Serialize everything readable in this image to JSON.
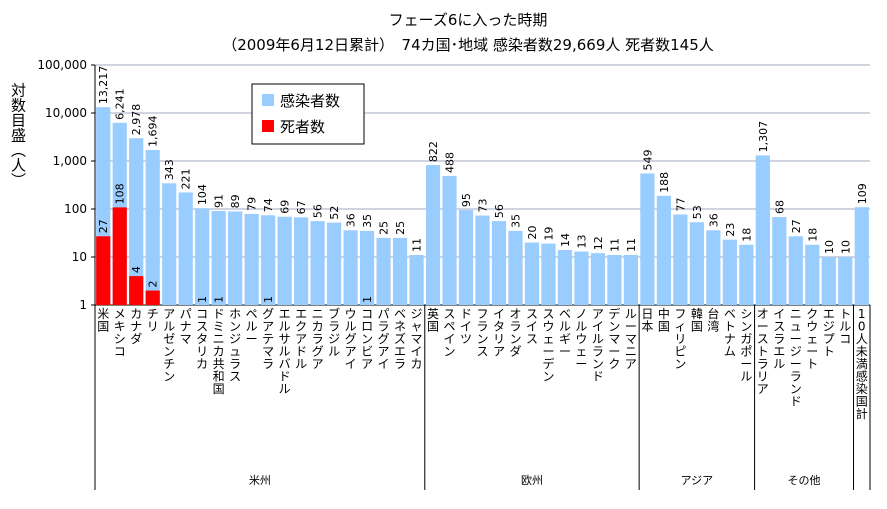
{
  "chart_data": {
    "type": "bar",
    "title": "フェーズ6に入った時期",
    "subtitle": "（2009年6月12日累計）　74カ国･地域 感染者数29,669人 死者数145人",
    "ylabel": "対数目盛（人）",
    "yscale": "log",
    "ylim": [
      1,
      100000
    ],
    "yticks": [
      "1",
      "10",
      "100",
      "1,000",
      "10,000",
      "100,000"
    ],
    "grid": true,
    "legend_position": "top-center",
    "colors": {
      "infected": "#99ccff",
      "deaths": "#ff0000"
    },
    "series": [
      {
        "name": "感染者数",
        "values": [
          13217,
          6241,
          2978,
          1694,
          343,
          221,
          104,
          91,
          89,
          79,
          74,
          69,
          67,
          56,
          52,
          36,
          35,
          25,
          25,
          11,
          822,
          488,
          95,
          73,
          56,
          35,
          20,
          19,
          14,
          13,
          12,
          11,
          11,
          549,
          188,
          77,
          53,
          36,
          23,
          18,
          1307,
          68,
          27,
          18,
          10,
          10,
          109
        ],
        "labels": [
          "13,217",
          "6,241",
          "2,978",
          "1,694",
          "343",
          "221",
          "104",
          "91",
          "89",
          "79",
          "74",
          "69",
          "67",
          "56",
          "52",
          "36",
          "35",
          "25",
          "25",
          "11",
          "822",
          "488",
          "95",
          "73",
          "56",
          "35",
          "20",
          "19",
          "14",
          "13",
          "12",
          "11",
          "11",
          "549",
          "188",
          "77",
          "53",
          "36",
          "23",
          "18",
          "1,307",
          "68",
          "27",
          "18",
          "10",
          "10",
          "109"
        ]
      },
      {
        "name": "死者数",
        "values": [
          27,
          108,
          4,
          2,
          0,
          0,
          1,
          1,
          0,
          0,
          1,
          0,
          0,
          0,
          0,
          0,
          1,
          0,
          0,
          0,
          0,
          0,
          0,
          0,
          0,
          0,
          0,
          0,
          0,
          0,
          0,
          0,
          0,
          0,
          0,
          0,
          0,
          0,
          0,
          0,
          0,
          0,
          0,
          0,
          0,
          0,
          0
        ],
        "labels": [
          "27",
          "108",
          "4",
          "2",
          "",
          "",
          "1",
          "1",
          "",
          "",
          "1",
          "",
          "",
          "",
          "",
          "",
          "1",
          "",
          "",
          "",
          "",
          "",
          "",
          "",
          "",
          "",
          "",
          "",
          "",
          "",
          "",
          "",
          "",
          "",
          "",
          "",
          "",
          "",
          "",
          "",
          "",
          "",
          "",
          "",
          "",
          "",
          ""
        ]
      }
    ],
    "categories": [
      "米国",
      "メキシコ",
      "カナダ",
      "チリ",
      "アルゼンチン",
      "パナマ",
      "コスタリカ",
      "ドミニカ共和国",
      "ホンジュラス",
      "ペルー",
      "グアテマラ",
      "エルサルバドル",
      "エクアドル",
      "ニカラグア",
      "ブラジル",
      "ウルグアイ",
      "コロンビア",
      "パラグアイ",
      "ベネズエラ",
      "ジャマイカ",
      "英国",
      "スペイン",
      "ドイツ",
      "フランス",
      "イタリア",
      "オランダ",
      "スイス",
      "スウェーデン",
      "ベルギー",
      "ノルウェー",
      "アイルランド",
      "デンマーク",
      "ルーマニア",
      "日本",
      "中国",
      "フィリピン",
      "韓国",
      "台湾",
      "ベトナム",
      "シンガポール",
      "オーストラリア",
      "イスラエル",
      "ニュージーランド",
      "クウェート",
      "エジプト",
      "トルコ",
      "10人未満感染国計"
    ],
    "regions": [
      {
        "name": "米州",
        "start": 0,
        "end": 19
      },
      {
        "name": "欧州",
        "start": 20,
        "end": 32
      },
      {
        "name": "アジア",
        "start": 33,
        "end": 39
      },
      {
        "name": "その他",
        "start": 40,
        "end": 45
      },
      {
        "name": "",
        "start": 46,
        "end": 46
      }
    ]
  }
}
